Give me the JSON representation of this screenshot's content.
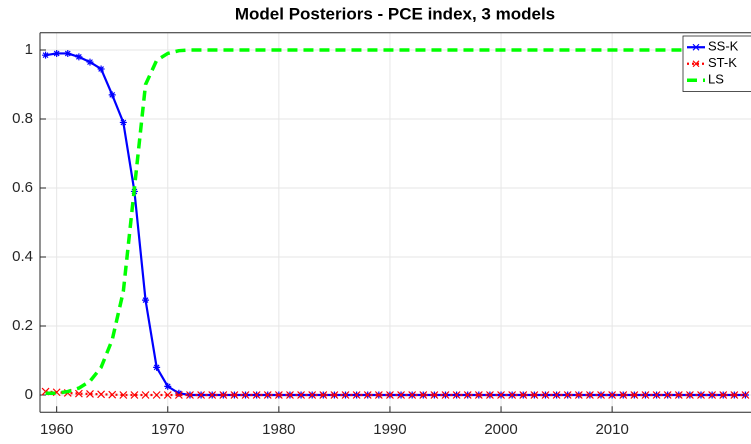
{
  "chart_data": {
    "type": "line",
    "title": "Model Posteriors - PCE index, 3 models",
    "x": [
      1959,
      1960,
      1961,
      1962,
      1963,
      1964,
      1965,
      1966,
      1967,
      1968,
      1969,
      1970,
      1971,
      1972,
      1973,
      1974,
      1975,
      1976,
      1977,
      1978,
      1979,
      1980,
      1981,
      1982,
      1983,
      1984,
      1985,
      1986,
      1987,
      1988,
      1989,
      1990,
      1991,
      1992,
      1993,
      1994,
      1995,
      1996,
      1997,
      1998,
      1999,
      2000,
      2001,
      2002,
      2003,
      2004,
      2005,
      2006,
      2007,
      2008,
      2009,
      2010,
      2011,
      2012,
      2013,
      2014,
      2015,
      2016,
      2017,
      2018,
      2019,
      2020,
      2021,
      2022
    ],
    "series": [
      {
        "name": "SS-K",
        "color": "#0000ff",
        "dash": "solid",
        "marker": "star",
        "width": 2.2,
        "values": [
          0.985,
          0.99,
          0.99,
          0.98,
          0.965,
          0.945,
          0.87,
          0.79,
          0.59,
          0.275,
          0.08,
          0.025,
          0.005,
          0,
          0,
          0,
          0,
          0,
          0,
          0,
          0,
          0,
          0,
          0,
          0,
          0,
          0,
          0,
          0,
          0,
          0,
          0,
          0,
          0,
          0,
          0,
          0,
          0,
          0,
          0,
          0,
          0,
          0,
          0,
          0,
          0,
          0,
          0,
          0,
          0,
          0,
          0,
          0,
          0,
          0,
          0,
          0,
          0,
          0,
          0,
          0,
          0,
          0,
          0
        ]
      },
      {
        "name": "ST-K",
        "color": "#ff0000",
        "dash": "dotted",
        "marker": "x",
        "width": 2.2,
        "values": [
          0.01,
          0.008,
          0.006,
          0.004,
          0.003,
          0.002,
          0.001,
          0,
          0,
          0,
          0,
          0,
          0,
          0,
          0,
          0,
          0,
          0,
          0,
          0,
          0,
          0,
          0,
          0,
          0,
          0,
          0,
          0,
          0,
          0,
          0,
          0,
          0,
          0,
          0,
          0,
          0,
          0,
          0,
          0,
          0,
          0,
          0,
          0,
          0,
          0,
          0,
          0,
          0,
          0,
          0,
          0,
          0,
          0,
          0,
          0,
          0,
          0,
          0,
          0,
          0,
          0,
          0,
          0
        ]
      },
      {
        "name": "LS",
        "color": "#00ff00",
        "dash": "dashed",
        "marker": "none",
        "width": 3.5,
        "values": [
          0.005,
          0.005,
          0.01,
          0.02,
          0.04,
          0.08,
          0.16,
          0.3,
          0.6,
          0.9,
          0.97,
          0.99,
          0.998,
          1,
          1,
          1,
          1,
          1,
          1,
          1,
          1,
          1,
          1,
          1,
          1,
          1,
          1,
          1,
          1,
          1,
          1,
          1,
          1,
          1,
          1,
          1,
          1,
          1,
          1,
          1,
          1,
          1,
          1,
          1,
          1,
          1,
          1,
          1,
          1,
          1,
          1,
          1,
          1,
          1,
          1,
          1,
          1,
          1,
          1,
          1,
          1,
          1,
          1,
          1
        ]
      }
    ],
    "xlim": [
      1958.5,
      2022.5
    ],
    "ylim": [
      -0.05,
      1.05
    ],
    "xticks": [
      1960,
      1970,
      1980,
      1990,
      2000,
      2010
    ],
    "yticks": [
      0,
      0.2,
      0.4,
      0.6,
      0.8,
      1
    ],
    "grid": true,
    "legend": "northeast"
  }
}
